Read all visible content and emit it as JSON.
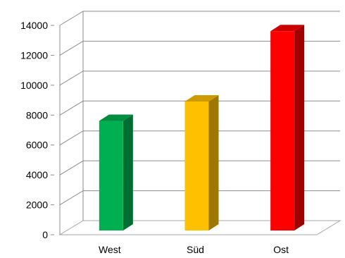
{
  "chart_data": {
    "type": "bar",
    "style": "3d-column",
    "categories": [
      "West",
      "Süd",
      "Ost"
    ],
    "values": [
      7800,
      9100,
      13800
    ],
    "bar_colors": [
      "#00b050",
      "#ffc000",
      "#ff0000"
    ],
    "ylim": [
      0,
      14000
    ],
    "yticks": [
      0,
      2000,
      4000,
      6000,
      8000,
      10000,
      12000,
      14000
    ],
    "ytick_labels": [
      "0",
      "2000",
      "4000",
      "6000",
      "8000",
      "10000",
      "12000",
      "14000"
    ],
    "grid": true,
    "legend": "none",
    "title": "",
    "xlabel": "",
    "ylabel": ""
  }
}
